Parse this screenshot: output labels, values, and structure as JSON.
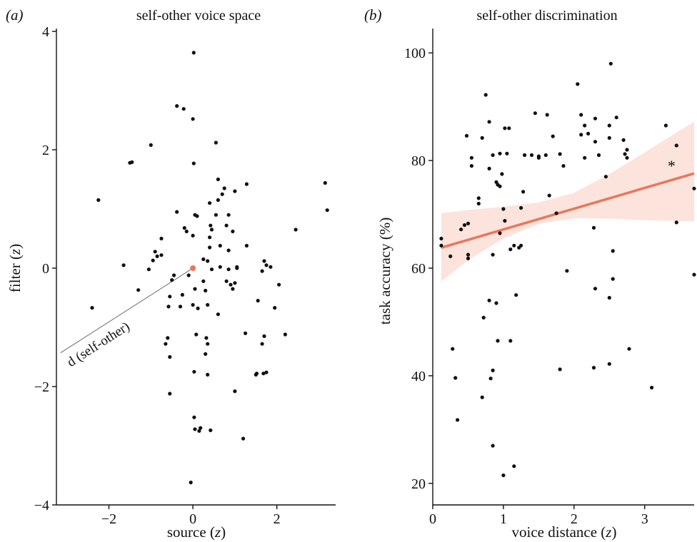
{
  "colors": {
    "point": "#111111",
    "accent": "#e8775a",
    "band": "#fbded6"
  },
  "chart_data": [
    {
      "panel_label_prefix": "(",
      "panel_label_letter": "a",
      "panel_label_suffix": ")",
      "type": "scatter",
      "title": "self-other voice space",
      "xlabel_text": "source",
      "xlabel_unit": "z",
      "ylabel_text": "filter",
      "ylabel_unit": "z",
      "xlim": [
        -3.25,
        3.4
      ],
      "ylim": [
        -4,
        4
      ],
      "xticks": [
        -2,
        0,
        2
      ],
      "xtick_labels": [
        "−2",
        "0",
        "2"
      ],
      "yticks": [
        -4,
        -2,
        0,
        2,
        4
      ],
      "ytick_labels": [
        "−4",
        "−2",
        "0",
        "2",
        "4"
      ],
      "grid": false,
      "annotation": {
        "text": "d (self-other)",
        "from": [
          -3.15,
          -1.43
        ],
        "to": [
          0,
          0
        ]
      },
      "self_point": {
        "x": 0,
        "y": 0
      },
      "points": [
        [
          0.02,
          3.64
        ],
        [
          -0.38,
          2.74
        ],
        [
          -0.22,
          2.69
        ],
        [
          0.0,
          2.52
        ],
        [
          -1.0,
          2.08
        ],
        [
          0.55,
          2.12
        ],
        [
          -1.5,
          1.78
        ],
        [
          -1.45,
          1.79
        ],
        [
          0.02,
          1.77
        ],
        [
          -2.25,
          1.15
        ],
        [
          1.28,
          1.42
        ],
        [
          3.15,
          1.44
        ],
        [
          3.2,
          0.98
        ],
        [
          2.45,
          0.65
        ],
        [
          0.4,
          1.1
        ],
        [
          0.6,
          1.5
        ],
        [
          0.75,
          1.35
        ],
        [
          1.0,
          1.3
        ],
        [
          0.7,
          1.25
        ],
        [
          0.6,
          1.15
        ],
        [
          0.55,
          0.9
        ],
        [
          0.05,
          0.9
        ],
        [
          0.1,
          0.88
        ],
        [
          -0.38,
          0.95
        ],
        [
          -0.15,
          0.62
        ],
        [
          0.0,
          0.55
        ],
        [
          0.42,
          0.72
        ],
        [
          0.45,
          0.65
        ],
        [
          0.4,
          0.52
        ],
        [
          -0.2,
          0.68
        ],
        [
          -0.75,
          0.5
        ],
        [
          0.8,
          0.72
        ],
        [
          0.85,
          0.9
        ],
        [
          0.95,
          0.62
        ],
        [
          0.65,
          0.38
        ],
        [
          0.85,
          0.3
        ],
        [
          1.28,
          0.38
        ],
        [
          1.7,
          0.12
        ],
        [
          1.85,
          0.02
        ],
        [
          1.75,
          0.05
        ],
        [
          0.4,
          0.35
        ],
        [
          -0.9,
          0.28
        ],
        [
          -0.85,
          0.2
        ],
        [
          -1.05,
          -0.02
        ],
        [
          -1.65,
          0.05
        ],
        [
          -1.3,
          -0.37
        ],
        [
          -0.95,
          0.13
        ],
        [
          -0.75,
          0.22
        ],
        [
          0.25,
          0.15
        ],
        [
          0.35,
          0.12
        ],
        [
          0.45,
          -0.02
        ],
        [
          0.65,
          0.02
        ],
        [
          0.85,
          -0.02
        ],
        [
          1.05,
          0.02
        ],
        [
          1.05,
          0.0
        ],
        [
          0.8,
          -0.22
        ],
        [
          0.9,
          -0.28
        ],
        [
          1.0,
          -0.25
        ],
        [
          0.95,
          -0.35
        ],
        [
          2.05,
          -0.28
        ],
        [
          1.65,
          -0.05
        ],
        [
          1.55,
          -0.55
        ],
        [
          0.25,
          -0.22
        ],
        [
          -0.1,
          -0.12
        ],
        [
          -0.45,
          -0.12
        ],
        [
          -0.5,
          -0.2
        ],
        [
          -0.55,
          -0.48
        ],
        [
          -0.25,
          -0.45
        ],
        [
          -0.3,
          -0.65
        ],
        [
          -0.58,
          -0.65
        ],
        [
          0.05,
          -0.35
        ],
        [
          0.0,
          -0.62
        ],
        [
          0.12,
          -0.68
        ],
        [
          0.35,
          -0.62
        ],
        [
          0.3,
          -0.38
        ],
        [
          0.6,
          -0.78
        ],
        [
          1.95,
          -0.67
        ],
        [
          -2.4,
          -0.67
        ],
        [
          -0.6,
          -1.18
        ],
        [
          -0.65,
          -1.28
        ],
        [
          -0.55,
          -1.5
        ],
        [
          0.08,
          -1.12
        ],
        [
          0.32,
          -1.18
        ],
        [
          0.35,
          -1.28
        ],
        [
          0.3,
          -1.45
        ],
        [
          0.35,
          -1.8
        ],
        [
          0.03,
          -1.75
        ],
        [
          1.25,
          -1.1
        ],
        [
          1.7,
          -1.15
        ],
        [
          1.65,
          -1.28
        ],
        [
          1.52,
          -1.78
        ],
        [
          1.5,
          -1.8
        ],
        [
          1.68,
          -1.78
        ],
        [
          1.75,
          -1.76
        ],
        [
          2.2,
          -1.12
        ],
        [
          -0.55,
          -2.12
        ],
        [
          1.0,
          -2.08
        ],
        [
          0.03,
          -2.52
        ],
        [
          0.05,
          -2.72
        ],
        [
          0.18,
          -2.7
        ],
        [
          0.15,
          -2.75
        ],
        [
          0.42,
          -2.74
        ],
        [
          1.2,
          -2.88
        ],
        [
          -0.05,
          -3.62
        ]
      ]
    },
    {
      "panel_label_prefix": "(",
      "panel_label_letter": "b",
      "panel_label_suffix": ")",
      "type": "scatter",
      "title": "self-other discrimination",
      "xlabel_text": "voice distance",
      "xlabel_unit": "z",
      "ylabel_text": "task accuracy (%)",
      "xlim": [
        0,
        3.7
      ],
      "ylim": [
        16,
        104
      ],
      "xticks": [
        0,
        1,
        2,
        3
      ],
      "xtick_labels": [
        "0",
        "1",
        "2",
        "3"
      ],
      "yticks": [
        20,
        40,
        60,
        80,
        100
      ],
      "ytick_labels": [
        "20",
        "40",
        "60",
        "80",
        "100"
      ],
      "grid": false,
      "significance_marker": "*",
      "fit_line": {
        "x": [
          0.12,
          3.7
        ],
        "y": [
          63.8,
          77.6
        ]
      },
      "confidence_band": {
        "x": [
          0.12,
          0.5,
          1.0,
          1.5,
          2.0,
          2.5,
          3.0,
          3.4,
          3.7
        ],
        "lower": [
          57.5,
          61.5,
          65.5,
          68.2,
          69.3,
          69.2,
          68.9,
          68.8,
          68.7
        ],
        "upper": [
          70.2,
          70.8,
          71.4,
          72.2,
          74.0,
          77.5,
          81.5,
          84.8,
          87.2
        ]
      },
      "points": [
        [
          0.12,
          65.5
        ],
        [
          0.12,
          64.2
        ],
        [
          0.25,
          62.2
        ],
        [
          0.4,
          67.2
        ],
        [
          0.45,
          68.0
        ],
        [
          0.5,
          68.3
        ],
        [
          0.48,
          84.6
        ],
        [
          0.55,
          80.5
        ],
        [
          0.55,
          79.0
        ],
        [
          0.5,
          62.5
        ],
        [
          0.5,
          61.8
        ],
        [
          0.65,
          73.0
        ],
        [
          0.65,
          72.0
        ],
        [
          0.75,
          92.2
        ],
        [
          0.8,
          87.2
        ],
        [
          0.7,
          84.2
        ],
        [
          0.8,
          78.5
        ],
        [
          0.85,
          81.0
        ],
        [
          0.9,
          76.0
        ],
        [
          0.92,
          75.5
        ],
        [
          0.95,
          75.2
        ],
        [
          0.95,
          81.3
        ],
        [
          0.98,
          77.5
        ],
        [
          1.02,
          86.0
        ],
        [
          1.08,
          86.0
        ],
        [
          1.05,
          81.3
        ],
        [
          1.0,
          71.0
        ],
        [
          0.95,
          66.5
        ],
        [
          1.02,
          68.8
        ],
        [
          1.1,
          63.5
        ],
        [
          1.15,
          64.2
        ],
        [
          1.25,
          71.2
        ],
        [
          1.25,
          64.2
        ],
        [
          1.28,
          74.2
        ],
        [
          1.3,
          81.0
        ],
        [
          1.4,
          81.0
        ],
        [
          1.45,
          88.8
        ],
        [
          1.5,
          80.5
        ],
        [
          1.5,
          80.8
        ],
        [
          1.6,
          81.0
        ],
        [
          1.62,
          88.5
        ],
        [
          1.7,
          84.5
        ],
        [
          1.65,
          73.5
        ],
        [
          1.75,
          70.2
        ],
        [
          1.8,
          81.2
        ],
        [
          1.85,
          79.0
        ],
        [
          1.9,
          59.5
        ],
        [
          2.05,
          94.2
        ],
        [
          2.1,
          84.8
        ],
        [
          2.1,
          88.5
        ],
        [
          2.15,
          86.5
        ],
        [
          2.2,
          85.0
        ],
        [
          2.15,
          80.5
        ],
        [
          2.3,
          87.8
        ],
        [
          2.3,
          83.5
        ],
        [
          2.35,
          81.0
        ],
        [
          2.45,
          77.0
        ],
        [
          2.5,
          86.5
        ],
        [
          2.52,
          98.0
        ],
        [
          2.5,
          84.2
        ],
        [
          2.6,
          88.0
        ],
        [
          2.7,
          83.8
        ],
        [
          2.72,
          81.2
        ],
        [
          2.75,
          82.0
        ],
        [
          2.75,
          80.5
        ],
        [
          2.28,
          67.5
        ],
        [
          2.55,
          63.2
        ],
        [
          2.55,
          58.0
        ],
        [
          2.5,
          54.5
        ],
        [
          2.3,
          56.2
        ],
        [
          2.28,
          41.5
        ],
        [
          2.5,
          42.2
        ],
        [
          2.78,
          45.0
        ],
        [
          1.8,
          41.2
        ],
        [
          1.18,
          55.0
        ],
        [
          1.22,
          63.8
        ],
        [
          1.1,
          46.5
        ],
        [
          0.85,
          62.5
        ],
        [
          0.8,
          54.0
        ],
        [
          0.9,
          53.5
        ],
        [
          0.72,
          50.8
        ],
        [
          0.85,
          41.0
        ],
        [
          0.82,
          39.5
        ],
        [
          0.92,
          46.5
        ],
        [
          0.7,
          36.0
        ],
        [
          0.28,
          45.0
        ],
        [
          0.32,
          39.6
        ],
        [
          0.35,
          31.8
        ],
        [
          0.85,
          27.0
        ],
        [
          1.15,
          23.2
        ],
        [
          1.0,
          21.5
        ],
        [
          3.1,
          37.8
        ],
        [
          3.3,
          86.5
        ],
        [
          3.45,
          82.8
        ],
        [
          3.45,
          68.5
        ],
        [
          3.7,
          74.8
        ],
        [
          3.7,
          58.8
        ]
      ]
    }
  ]
}
